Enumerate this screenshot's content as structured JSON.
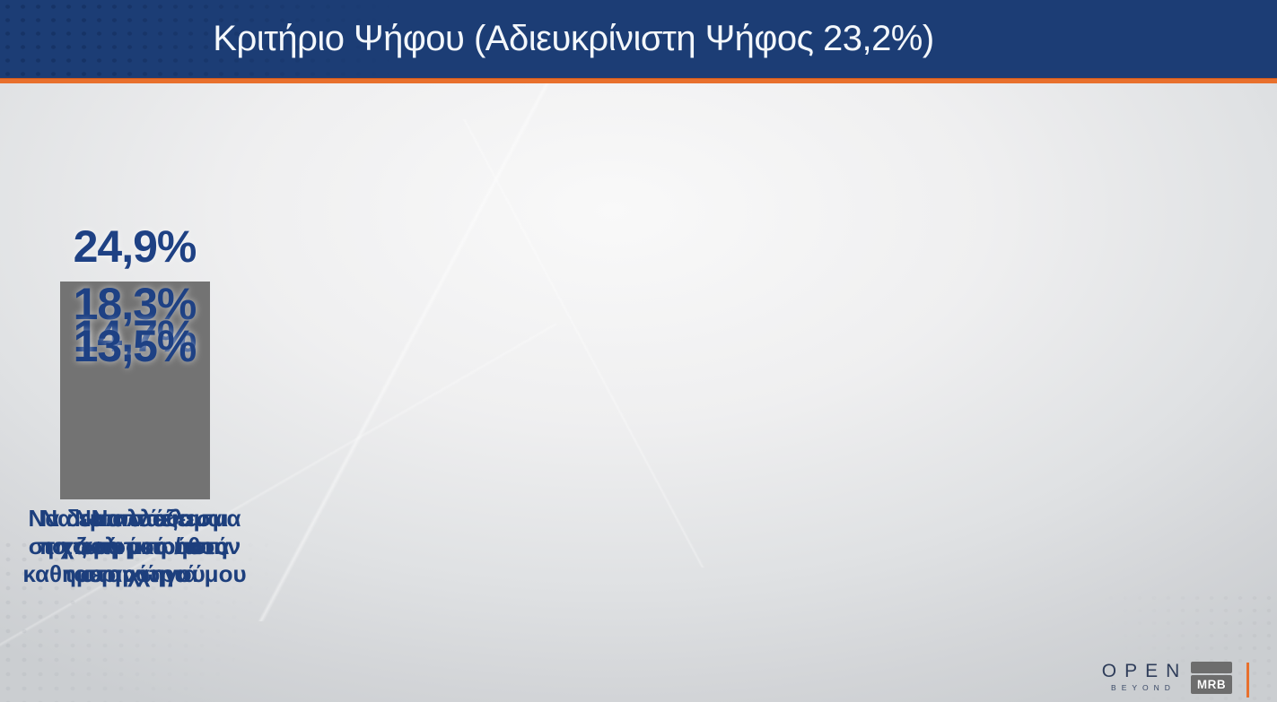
{
  "header": {
    "title": "Κριτήριο Ψήφου (Αδιευκρίνιστη Ψήφος 23,2%)"
  },
  "chart_data": {
    "type": "bar",
    "title": "Κριτήριο Ψήφου (Αδιευκρίνιστη Ψήφος 23,2%)",
    "categories": [
      "Να δω αποτέλεσμα στη ζωή μου / στην καθημερινότητά μου",
      "Να αλλάξει το πολιτικό ήθος στη χώρα",
      "Να πάει η χώρα μπροστά",
      "Να εμπιστεύομαι το πρόσωπο του αρχηγού"
    ],
    "values": [
      24.9,
      18.3,
      14.7,
      13.5
    ],
    "value_labels": [
      "24,9%",
      "18,3%",
      "14,7%",
      "13,5%"
    ],
    "xlabel": "",
    "ylabel": "",
    "ylim": [
      0,
      27
    ],
    "grid": false,
    "legend": false,
    "bar_color": "#737373"
  },
  "bars": [
    {
      "value": 24.9,
      "value_label": "24,9%",
      "label_lines": [
        "Να δω αποτέλεσμα",
        "στη ζωή μου / στην",
        "καθημερινότητά μου"
      ]
    },
    {
      "value": 18.3,
      "value_label": "18,3%",
      "label_lines": [
        "Να αλλάξει",
        "το πολιτικό ήθος",
        "στη χώρα"
      ]
    },
    {
      "value": 14.7,
      "value_label": "14,7%",
      "label_lines": [
        "Να πάει",
        "η χώρα μπροστά"
      ]
    },
    {
      "value": 13.5,
      "value_label": "13,5%",
      "label_lines": [
        "Να εμπιστεύομαι",
        "το πρόσωπο",
        "του αρχηγού"
      ]
    }
  ],
  "footer": {
    "open_logo": {
      "text": "OPEN",
      "subtext": "BEYOND"
    },
    "mrb_logo": {
      "text": "MRB"
    }
  },
  "colors": {
    "header_bg": "#1c3d75",
    "accent_orange": "#e8702d",
    "bar_gray": "#737373",
    "value_blue": "#1e4184",
    "label_blue": "#1d3f7d",
    "title_text": "#f3f7fb"
  }
}
